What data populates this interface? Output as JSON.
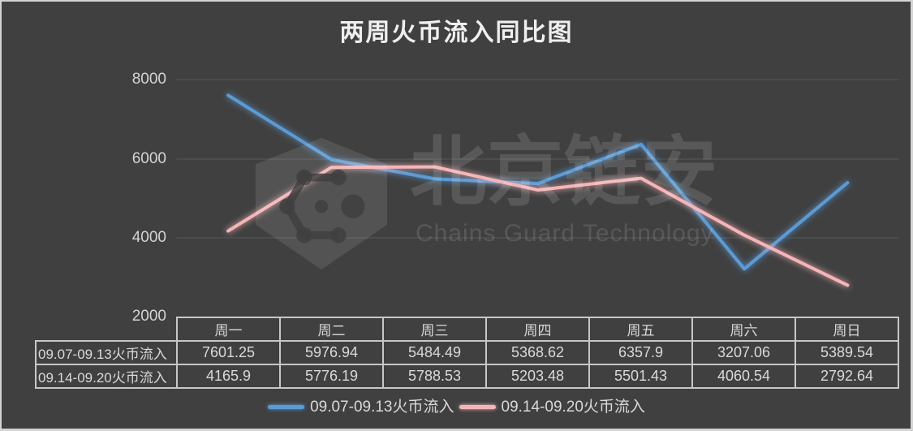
{
  "title": "两周火币流入同比图",
  "colors": {
    "background": "#404040",
    "frame": "#d3d3d3",
    "gridline": "#575757",
    "text": "#d9d9d9",
    "series1": "#5B9BD5",
    "series2": "#F5B5B8"
  },
  "chart_data": {
    "type": "line",
    "title": "两周火币流入同比图",
    "categories": [
      "周一",
      "周二",
      "周三",
      "周四",
      "周五",
      "周六",
      "周日"
    ],
    "series": [
      {
        "name": "09.07-09.13火币流入",
        "color": "#5B9BD5",
        "values": [
          7601.25,
          5976.94,
          5484.49,
          5368.62,
          6357.9,
          3207.06,
          5389.54
        ]
      },
      {
        "name": "09.14-09.20火币流入",
        "color": "#F5B5B8",
        "values": [
          4165.9,
          5776.19,
          5788.53,
          5203.48,
          5501.43,
          4060.54,
          2792.64
        ]
      }
    ],
    "ylim": [
      2000,
      8000
    ],
    "y_ticks": [
      8000,
      6000,
      4000,
      2000
    ],
    "grid": true,
    "legend_position": "bottom"
  },
  "y_tick_labels": [
    "8000",
    "6000",
    "4000",
    "2000"
  ],
  "watermark": {
    "cn_text": "北京链安",
    "en_text": "Chains Guard Technology",
    "logo_icon": "hexagon-shield-molecule"
  },
  "table": {
    "headers": [
      "周一",
      "周二",
      "周三",
      "周四",
      "周五",
      "周六",
      "周日"
    ],
    "rows": [
      {
        "label": "09.07-09.13火币流入",
        "values": [
          "7601.25",
          "5976.94",
          "5484.49",
          "5368.62",
          "6357.9",
          "3207.06",
          "5389.54"
        ]
      },
      {
        "label": "09.14-09.20火币流入",
        "values": [
          "4165.9",
          "5776.19",
          "5788.53",
          "5203.48",
          "5501.43",
          "4060.54",
          "2792.64"
        ]
      }
    ]
  },
  "legend": {
    "items": [
      {
        "label": "09.07-09.13火币流入",
        "color": "#5B9BD5"
      },
      {
        "label": "09.14-09.20火币流入",
        "color": "#F5B5B8"
      }
    ]
  }
}
